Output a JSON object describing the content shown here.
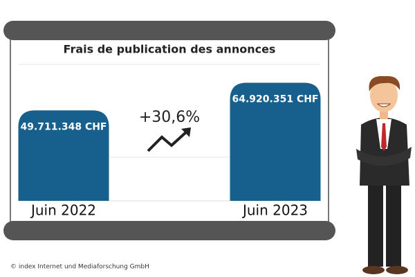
{
  "chart_data": {
    "type": "bar",
    "title": "Frais de publication des annonces",
    "categories": [
      "Juin 2022",
      "Juin 2023"
    ],
    "values": [
      49711348,
      64920351
    ],
    "value_labels": [
      "49.711.348 CHF",
      "64.920.351 CHF"
    ],
    "color": "#17608e",
    "ylim": [
      0,
      75000000
    ],
    "annotation": "+30,6%",
    "source": "© index  Internet und Mediaforschung GmbH"
  }
}
